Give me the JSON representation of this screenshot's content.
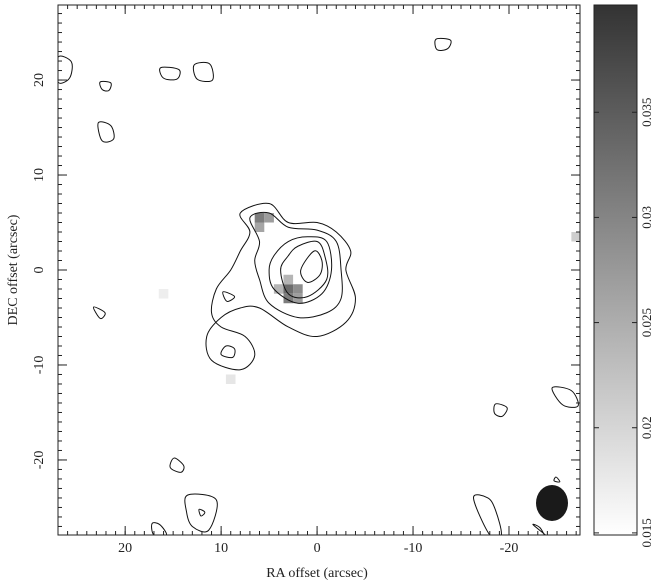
{
  "chart_data": {
    "type": "contour",
    "x_label": "RA offset (arcsec)",
    "y_label": "DEC offset (arcsec)",
    "xlim": [
      27,
      -27.4
    ],
    "ylim": [
      -27.9,
      27.9
    ],
    "xticks": [
      20,
      10,
      0,
      -10,
      -20
    ],
    "yticks": [
      -20,
      -10,
      0,
      10,
      20
    ],
    "minor_tick_step": 1,
    "cmap": [
      "#ffffff",
      "#333333"
    ],
    "colorbar": {
      "lim": [
        0.0149,
        0.0401
      ],
      "ticks": [
        0.015,
        0.02,
        0.025,
        0.03,
        0.035
      ]
    },
    "pixels": [
      {
        "x": 6,
        "y": 5.5,
        "value": 0.031
      },
      {
        "x": 5,
        "y": 5.5,
        "value": 0.027
      },
      {
        "x": 6,
        "y": 4.5,
        "value": 0.026
      },
      {
        "x": 3,
        "y": -2,
        "value": 0.033
      },
      {
        "x": 3,
        "y": -3,
        "value": 0.031
      },
      {
        "x": 2,
        "y": -2,
        "value": 0.029
      },
      {
        "x": 2,
        "y": -3,
        "value": 0.027
      },
      {
        "x": 4,
        "y": -2,
        "value": 0.024
      },
      {
        "x": 3,
        "y": -1,
        "value": 0.024
      },
      {
        "x": -27,
        "y": 3.5,
        "value": 0.021
      },
      {
        "x": 9,
        "y": -11.5,
        "value": 0.018
      },
      {
        "x": 16,
        "y": -2.5,
        "value": 0.017
      }
    ],
    "contours": [
      {
        "x": [
          8,
          5,
          3,
          0,
          -2,
          -3.5,
          -3,
          -4,
          -3,
          0,
          3,
          6,
          8,
          10,
          11.5,
          11,
          8,
          6.5,
          7.5,
          10,
          11,
          10.5,
          9,
          8,
          7
        ],
        "y": [
          6,
          7,
          5,
          5,
          4,
          2,
          0,
          -3,
          -5.5,
          -7,
          -6,
          -4,
          -4,
          -5,
          -7,
          -9.5,
          -10.5,
          -9,
          -7,
          -6,
          -4.5,
          -2,
          0,
          2,
          4
        ]
      },
      {
        "x": [
          7,
          5,
          3,
          0,
          -2,
          -2.5,
          -2.5,
          -1,
          2,
          5,
          6,
          6.5,
          6
        ],
        "y": [
          5.5,
          6,
          4.5,
          4.2,
          3,
          0,
          -3,
          -4.5,
          -5,
          -3.5,
          -1,
          1,
          3
        ]
      },
      {
        "x": [
          3,
          1,
          -1,
          -1.5,
          -0.5,
          2,
          4.5,
          5,
          4.5
        ],
        "y": [
          3,
          3.5,
          3,
          0,
          -2.5,
          -3.5,
          -2,
          0,
          1.5
        ]
      },
      {
        "x": [
          2,
          0,
          -0.8,
          -1,
          1,
          3,
          3.8,
          3
        ],
        "y": [
          2.5,
          3,
          1.5,
          -1,
          -2.8,
          -2.5,
          0,
          1.5
        ]
      },
      {
        "x": [
          0.3,
          -0.5,
          -0.3,
          1,
          1.7
        ],
        "y": [
          2,
          1,
          -0.5,
          -1.3,
          0
        ]
      },
      {
        "x": [
          9.5,
          8.6,
          8.8,
          10
        ],
        "y": [
          -8,
          -8.3,
          -9.2,
          -8.9
        ]
      },
      {
        "x": [
          9.8,
          8.6,
          9.4
        ],
        "y": [
          -2.3,
          -2.8,
          -3.3
        ]
      },
      {
        "x": [
          22.8,
          21.5,
          21.2,
          22.4
        ],
        "y": [
          15.5,
          15.2,
          13.8,
          13.6
        ]
      },
      {
        "x": [
          22.6,
          21.5,
          21.7,
          22.4
        ],
        "y": [
          19.8,
          19.7,
          18.9,
          19.0
        ]
      },
      {
        "x": [
          16.3,
          14.4,
          14.6,
          16.0
        ],
        "y": [
          21.3,
          21.1,
          20.1,
          20.2
        ]
      },
      {
        "x": [
          12.8,
          11.2,
          10.9,
          12.5
        ],
        "y": [
          21.6,
          21.7,
          20.0,
          20.1
        ]
      },
      {
        "x": [
          -12.4,
          -13.9,
          -13.6,
          -12.5
        ],
        "y": [
          24.3,
          24.2,
          23.3,
          23.2
        ]
      },
      {
        "x": [
          27,
          25.6,
          25.8,
          27
        ],
        "y": [
          22.4,
          21.9,
          20.2,
          19.8
        ]
      },
      {
        "x": [
          23.3,
          22.1,
          22.6
        ],
        "y": [
          -3.9,
          -4.5,
          -5.1
        ]
      },
      {
        "x": [
          14.9,
          13.9,
          14.2,
          15.3
        ],
        "y": [
          -19.8,
          -20.6,
          -21.3,
          -20.8
        ]
      },
      {
        "x": [
          -18.6,
          -19.8,
          -19.3,
          -18.5
        ],
        "y": [
          -14.1,
          -14.5,
          -15.4,
          -15.1
        ]
      },
      {
        "x": [
          -24.5,
          -26.5,
          -27.2,
          -25.6
        ],
        "y": [
          -12.4,
          -12.7,
          -14.3,
          -14.2
        ]
      },
      {
        "x": [
          13.5,
          10.5,
          11.3,
          13.0,
          13.6
        ],
        "y": [
          -23.7,
          -24.2,
          -27.4,
          -27.0,
          -25.5
        ]
      },
      {
        "x": [
          12.3,
          11.7,
          12.1
        ],
        "y": [
          -25.2,
          -25.5,
          -25.9
        ]
      },
      {
        "x": [
          17.2,
          16.4,
          15.7,
          17.0
        ],
        "y": [
          -26.7,
          -26.8,
          -27.9,
          -27.9
        ]
      },
      {
        "x": [
          -16.3,
          -17.8,
          -18.6,
          -19.2,
          -18.0
        ],
        "y": [
          -24.0,
          -24.0,
          -25.3,
          -27.9,
          -27.9
        ]
      },
      {
        "x": [
          -22.5,
          -23.2,
          -23.7,
          -23.8
        ],
        "y": [
          -26.8,
          -27.1,
          -27.9,
          -27.9
        ]
      },
      {
        "x": [
          -24.9,
          -25.3,
          -24.7
        ],
        "y": [
          -21.8,
          -22.3,
          -22.2
        ]
      }
    ]
  }
}
